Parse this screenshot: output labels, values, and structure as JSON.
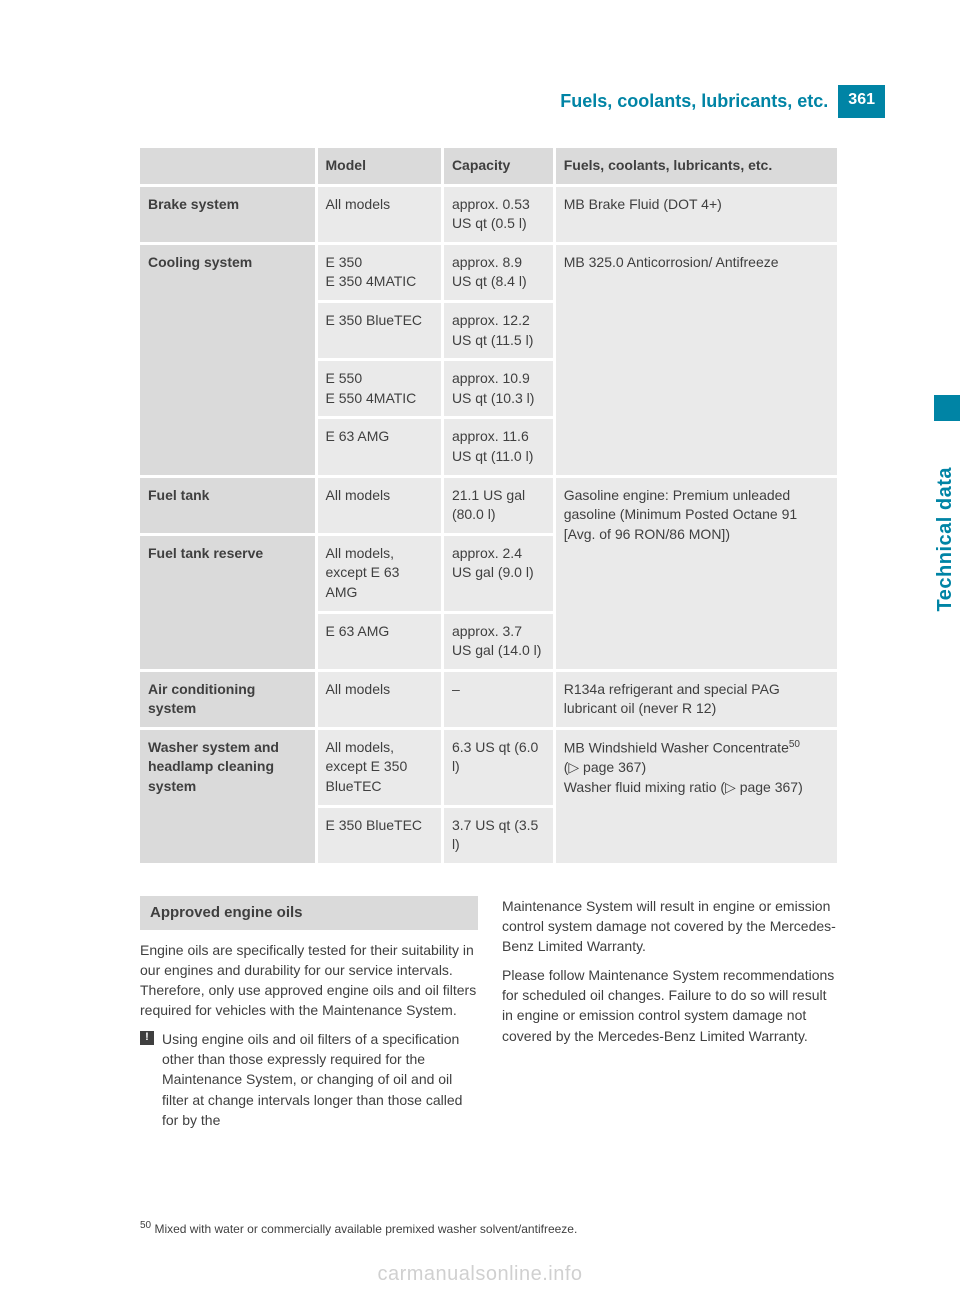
{
  "header": {
    "title": "Fuels, coolants, lubricants, etc.",
    "page_number": "361"
  },
  "side_tab": {
    "label": "Technical data"
  },
  "table": {
    "columns": [
      "",
      "Model",
      "Capacity",
      "Fuels, coolants, lubricants, etc."
    ],
    "rows": {
      "brake": {
        "label": "Brake system",
        "model": "All models",
        "capacity": "approx. 0.53 US qt (0.5 l)",
        "fluid": "MB Brake Fluid (DOT 4+)"
      },
      "cooling": {
        "label": "Cooling system",
        "sub": [
          {
            "model": "E 350\nE 350 4MATIC",
            "capacity": "approx. 8.9 US qt (8.4 l)"
          },
          {
            "model": "E 350 BlueTEC",
            "capacity": "approx. 12.2 US qt (11.5 l)"
          },
          {
            "model": "E 550\nE 550 4MATIC",
            "capacity": "approx. 10.9 US qt (10.3 l)"
          },
          {
            "model": "E 63 AMG",
            "capacity": "approx. 11.6 US qt (11.0 l)"
          }
        ],
        "fluid": "MB 325.0 Anticorrosion/ Antifreeze"
      },
      "fuel_tank": {
        "label": "Fuel tank",
        "model": "All models",
        "capacity": "21.1 US gal (80.0 l)"
      },
      "fuel_reserve": {
        "label": "Fuel tank reserve",
        "sub": [
          {
            "model": "All models, except E 63 AMG",
            "capacity": "approx. 2.4 US gal (9.0 l)"
          },
          {
            "model": "E 63 AMG",
            "capacity": "approx. 3.7 US gal (14.0 l)"
          }
        ],
        "fluid": "Gasoline engine: Premium unleaded gasoline (Minimum Posted Octane 91 [Avg. of 96 RON/86 MON])"
      },
      "ac": {
        "label": "Air conditioning system",
        "model": "All models",
        "capacity": "–",
        "fluid": "R134a refrigerant and special PAG lubricant oil (never R 12)"
      },
      "washer": {
        "label": "Washer system and headlamp cleaning system",
        "sub": [
          {
            "model": "All models, except E 350 BlueTEC",
            "capacity": "6.3 US qt (6.0 l)"
          },
          {
            "model": "E 350 BlueTEC",
            "capacity": "3.7 US qt (3.5 l)"
          }
        ],
        "fluid_line1": "MB Windshield Washer Concentrate",
        "fluid_sup": "50",
        "fluid_line2": "(▷ page 367)",
        "fluid_line3": "Washer fluid mixing ratio (▷ page 367)"
      }
    }
  },
  "section": {
    "heading": "Approved engine oils",
    "p1": "Engine oils are specifically tested for their suitability in our engines and durability for our service intervals. Therefore, only use approved engine oils and oil filters required for vehicles with the Maintenance System.",
    "warn": "Using engine oils and oil filters of a specification other than those expressly required for the Maintenance System, or changing of oil and oil filter at change intervals longer than those called for by the",
    "p2": "Maintenance System will result in engine or emission control system damage not covered by the Mercedes-Benz Limited Warranty.",
    "p3": "Please follow Maintenance System recommendations for scheduled oil changes. Failure to do so will result in engine or emission control system damage not covered by the Mercedes-Benz Limited Warranty."
  },
  "footnote": {
    "sup": "50",
    "text": " Mixed with water or commercially available premixed washer solvent/antifreeze."
  },
  "watermark": "carmanualsonline.info",
  "colors": {
    "teal": "#0084a5",
    "hdr_bg": "#dadada",
    "cell_bg": "#eaeaea",
    "text": "#3f3f3f"
  }
}
